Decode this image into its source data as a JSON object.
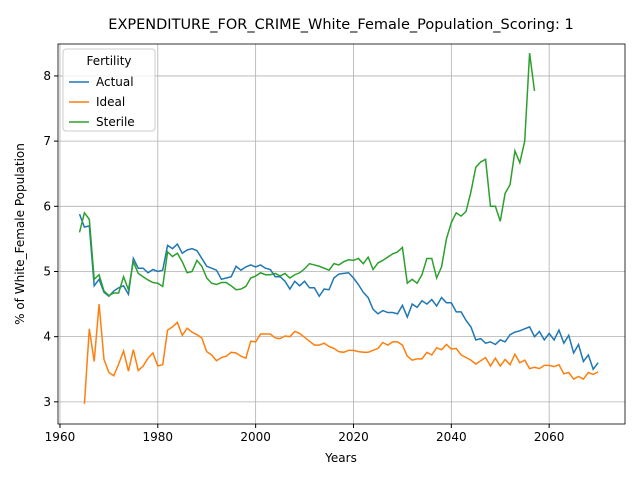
{
  "chart_data": {
    "type": "line",
    "title": "EXPENDITURE_FOR_CRIME_White_Female_Population_Scoring: 1",
    "xlabel": "Years",
    "ylabel": "% of White_Female Population",
    "legend_title": "Fertility",
    "legend": "upper left",
    "grid": true,
    "xlim": [
      1959.6,
      2075.5
    ],
    "ylim": [
      2.66,
      8.49
    ],
    "xticks": [
      1960,
      1980,
      2000,
      2020,
      2040,
      2060
    ],
    "yticks": [
      3,
      4,
      5,
      6,
      7,
      8
    ],
    "x": [
      1964,
      1965,
      1966,
      1967,
      1968,
      1969,
      1970,
      1971,
      1972,
      1973,
      1974,
      1975,
      1976,
      1977,
      1978,
      1979,
      1980,
      1981,
      1982,
      1983,
      1984,
      1985,
      1986,
      1987,
      1988,
      1989,
      1990,
      1991,
      1992,
      1993,
      1994,
      1995,
      1996,
      1997,
      1998,
      1999,
      2000,
      2001,
      2002,
      2003,
      2004,
      2005,
      2006,
      2007,
      2008,
      2009,
      2010,
      2011,
      2012,
      2013,
      2014,
      2015,
      2016,
      2017,
      2018,
      2019,
      2020,
      2021,
      2022,
      2023,
      2024,
      2025,
      2026,
      2027,
      2028,
      2029,
      2030,
      2031,
      2032,
      2033,
      2034,
      2035,
      2036,
      2037,
      2038,
      2039,
      2040,
      2041,
      2042,
      2043,
      2044,
      2045,
      2046,
      2047,
      2048,
      2049,
      2050,
      2051,
      2052,
      2053,
      2054,
      2055,
      2056,
      2057,
      2058,
      2059,
      2060,
      2061,
      2062,
      2063,
      2064,
      2065,
      2066,
      2067,
      2068,
      2069,
      2070
    ],
    "series": [
      {
        "name": "Actual",
        "color": "#1f77b4",
        "values": [
          5.88,
          5.68,
          5.7,
          4.78,
          4.88,
          4.68,
          4.62,
          4.7,
          4.75,
          4.78,
          4.65,
          5.2,
          5.05,
          5.05,
          4.98,
          5.03,
          5.0,
          5.02,
          5.4,
          5.35,
          5.42,
          5.28,
          5.33,
          5.35,
          5.32,
          5.2,
          5.08,
          5.05,
          5.02,
          4.88,
          4.9,
          4.92,
          5.08,
          5.02,
          5.07,
          5.1,
          5.07,
          5.1,
          5.05,
          5.03,
          4.92,
          4.92,
          4.85,
          4.73,
          4.85,
          4.78,
          4.85,
          4.75,
          4.75,
          4.62,
          4.73,
          4.72,
          4.9,
          4.96,
          4.97,
          4.98,
          4.9,
          4.8,
          4.68,
          4.6,
          4.42,
          4.35,
          4.4,
          4.37,
          4.37,
          4.35,
          4.48,
          4.3,
          4.5,
          4.45,
          4.55,
          4.5,
          4.57,
          4.47,
          4.6,
          4.52,
          4.52,
          4.38,
          4.38,
          4.25,
          4.15,
          3.95,
          3.97,
          3.9,
          3.92,
          3.88,
          3.95,
          3.92,
          4.03,
          4.07,
          4.09,
          4.12,
          4.15,
          4.0,
          4.08,
          3.95,
          4.05,
          3.95,
          4.1,
          3.9,
          4.02,
          3.75,
          3.88,
          3.62,
          3.72,
          3.5,
          3.6
        ]
      },
      {
        "name": "Ideal",
        "color": "#ff7f0e",
        "values": [
          null,
          2.97,
          4.12,
          3.62,
          4.5,
          3.65,
          3.45,
          3.4,
          3.58,
          3.78,
          3.47,
          3.8,
          3.48,
          3.55,
          3.67,
          3.75,
          3.55,
          3.57,
          4.1,
          4.15,
          4.22,
          4.02,
          4.13,
          4.07,
          4.03,
          3.98,
          3.77,
          3.72,
          3.63,
          3.68,
          3.7,
          3.76,
          3.75,
          3.7,
          3.67,
          3.93,
          3.92,
          4.04,
          4.04,
          4.04,
          3.98,
          3.97,
          4.01,
          4.0,
          4.08,
          4.05,
          3.99,
          3.93,
          3.87,
          3.87,
          3.9,
          3.85,
          3.82,
          3.77,
          3.76,
          3.79,
          3.79,
          3.77,
          3.76,
          3.76,
          3.79,
          3.82,
          3.91,
          3.87,
          3.92,
          3.92,
          3.87,
          3.7,
          3.64,
          3.66,
          3.66,
          3.76,
          3.72,
          3.83,
          3.8,
          3.88,
          3.81,
          3.82,
          3.72,
          3.68,
          3.64,
          3.58,
          3.63,
          3.68,
          3.55,
          3.67,
          3.55,
          3.65,
          3.57,
          3.73,
          3.6,
          3.64,
          3.51,
          3.53,
          3.51,
          3.56,
          3.56,
          3.54,
          3.57,
          3.43,
          3.45,
          3.35,
          3.39,
          3.35,
          3.45,
          3.42,
          3.46
        ]
      },
      {
        "name": "Sterile",
        "color": "#2ca02c",
        "values": [
          5.6,
          5.9,
          5.8,
          4.88,
          4.95,
          4.7,
          4.63,
          4.67,
          4.67,
          4.92,
          4.72,
          5.15,
          4.97,
          4.92,
          4.87,
          4.83,
          4.82,
          4.77,
          5.3,
          5.23,
          5.28,
          5.15,
          4.98,
          5.0,
          5.17,
          5.08,
          4.9,
          4.82,
          4.8,
          4.83,
          4.83,
          4.78,
          4.72,
          4.73,
          4.77,
          4.9,
          4.93,
          4.98,
          4.95,
          4.95,
          4.97,
          4.93,
          4.97,
          4.9,
          4.95,
          4.98,
          5.04,
          5.12,
          5.1,
          5.08,
          5.05,
          5.02,
          5.12,
          5.1,
          5.15,
          5.18,
          5.17,
          5.2,
          5.12,
          5.22,
          5.03,
          5.13,
          5.17,
          5.22,
          5.27,
          5.3,
          5.37,
          4.82,
          4.88,
          4.82,
          4.95,
          5.2,
          5.2,
          4.9,
          5.07,
          5.5,
          5.75,
          5.9,
          5.85,
          5.92,
          6.22,
          6.6,
          6.68,
          6.72,
          6.0,
          6.0,
          5.77,
          6.2,
          6.33,
          6.85,
          6.67,
          7.0,
          8.35,
          7.77,
          null,
          null,
          null,
          null,
          null,
          null,
          null,
          null,
          null,
          null,
          null,
          null,
          null
        ]
      }
    ]
  }
}
